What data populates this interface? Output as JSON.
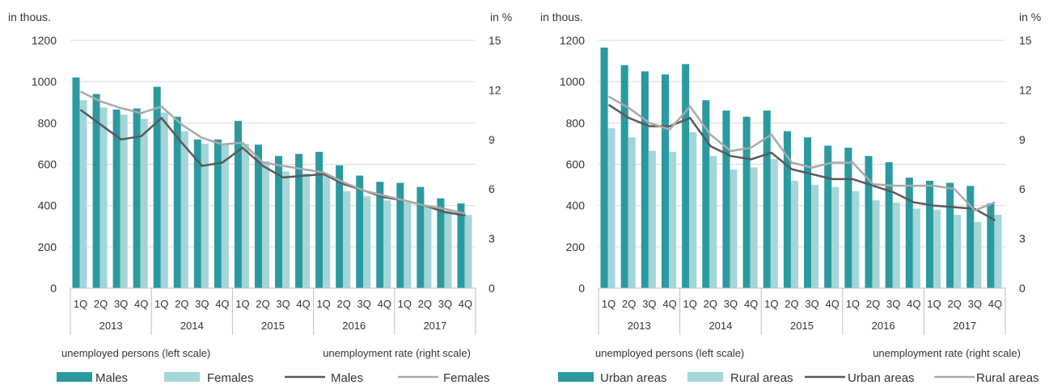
{
  "colors": {
    "bar_primary": "#2a9aa0",
    "bar_secondary": "#a4d6d8",
    "line_primary": "#595959",
    "line_secondary": "#a9a9a9",
    "grid": "#d9d9d9",
    "axis": "#bfbfbf",
    "text": "#333333"
  },
  "chart_data": [
    {
      "type": "bar",
      "left_axis_unit": "in thous.",
      "right_axis_unit": "in %",
      "quarters": [
        "1Q",
        "2Q",
        "3Q",
        "4Q"
      ],
      "years": [
        "2013",
        "2014",
        "2015",
        "2016",
        "2017"
      ],
      "left_ylim": [
        0,
        1200
      ],
      "left_ticks": [
        "0",
        "200",
        "400",
        "600",
        "800",
        "1000",
        "1200"
      ],
      "right_ylim": [
        0,
        15
      ],
      "right_ticks": [
        "0",
        "3",
        "6",
        "9",
        "12",
        "15"
      ],
      "grid": true,
      "left_scale_note": "unemployed persons (left scale)",
      "right_scale_note": "unemployment rate (right scale)",
      "bar_series": [
        {
          "name": "Males",
          "values": [
            1020,
            940,
            865,
            870,
            975,
            830,
            720,
            720,
            810,
            695,
            640,
            650,
            660,
            595,
            545,
            515,
            510,
            490,
            435,
            410
          ]
        },
        {
          "name": "Females",
          "values": [
            910,
            875,
            840,
            820,
            850,
            760,
            700,
            695,
            700,
            615,
            565,
            555,
            545,
            470,
            445,
            425,
            415,
            395,
            375,
            355
          ]
        }
      ],
      "line_series": [
        {
          "name": "Males",
          "values": [
            10.8,
            9.9,
            9.0,
            9.2,
            10.3,
            8.8,
            7.4,
            7.6,
            8.5,
            7.4,
            6.7,
            6.8,
            6.9,
            6.3,
            5.9,
            5.5,
            5.3,
            5.0,
            4.6,
            4.4
          ]
        },
        {
          "name": "Females",
          "values": [
            11.9,
            11.3,
            10.9,
            10.6,
            11.0,
            9.9,
            9.1,
            8.7,
            8.8,
            7.6,
            7.4,
            7.2,
            7.0,
            6.4,
            5.9,
            5.6,
            5.3,
            5.0,
            4.8,
            4.5
          ]
        }
      ],
      "legend": [
        {
          "label": "Males",
          "kind": "bar",
          "series": "primary"
        },
        {
          "label": "Females",
          "kind": "bar",
          "series": "secondary"
        },
        {
          "label": "Males",
          "kind": "line",
          "series": "primary"
        },
        {
          "label": "Females",
          "kind": "line",
          "series": "secondary"
        }
      ]
    },
    {
      "type": "bar",
      "left_axis_unit": "in thous.",
      "right_axis_unit": "in %",
      "quarters": [
        "1Q",
        "2Q",
        "3Q",
        "4Q"
      ],
      "years": [
        "2013",
        "2014",
        "2015",
        "2016",
        "2017"
      ],
      "left_ylim": [
        0,
        1200
      ],
      "left_ticks": [
        "0",
        "200",
        "400",
        "600",
        "800",
        "1000",
        "1200"
      ],
      "right_ylim": [
        0,
        15
      ],
      "right_ticks": [
        "0",
        "3",
        "6",
        "9",
        "12",
        "15"
      ],
      "grid": true,
      "left_scale_note": "unemployed persons (left scale)",
      "right_scale_note": "unemployment rate (right scale)",
      "bar_series": [
        {
          "name": "Urban areas",
          "values": [
            1165,
            1080,
            1050,
            1035,
            1085,
            910,
            860,
            830,
            860,
            760,
            730,
            690,
            680,
            640,
            610,
            535,
            520,
            510,
            495,
            410
          ]
        },
        {
          "name": "Rural areas",
          "values": [
            775,
            730,
            665,
            660,
            755,
            640,
            575,
            585,
            625,
            520,
            500,
            490,
            470,
            425,
            415,
            385,
            380,
            355,
            320,
            355
          ]
        }
      ],
      "line_series": [
        {
          "name": "Urban areas",
          "values": [
            11.1,
            10.3,
            9.8,
            9.8,
            10.3,
            8.6,
            8.0,
            7.8,
            8.2,
            7.2,
            6.9,
            6.6,
            6.6,
            6.2,
            5.8,
            5.2,
            5.0,
            4.9,
            4.8,
            4.1
          ]
        },
        {
          "name": "Rural areas",
          "values": [
            11.6,
            10.9,
            10.0,
            9.6,
            11.0,
            9.3,
            8.3,
            8.5,
            9.3,
            7.6,
            7.3,
            7.6,
            7.6,
            6.3,
            6.2,
            6.2,
            6.2,
            6.0,
            4.7,
            5.2
          ]
        }
      ],
      "legend": [
        {
          "label": "Urban areas",
          "kind": "bar",
          "series": "primary"
        },
        {
          "label": "Rural areas",
          "kind": "bar",
          "series": "secondary"
        },
        {
          "label": "Urban areas",
          "kind": "line",
          "series": "primary"
        },
        {
          "label": "Rural areas",
          "kind": "line",
          "series": "secondary"
        }
      ]
    }
  ]
}
